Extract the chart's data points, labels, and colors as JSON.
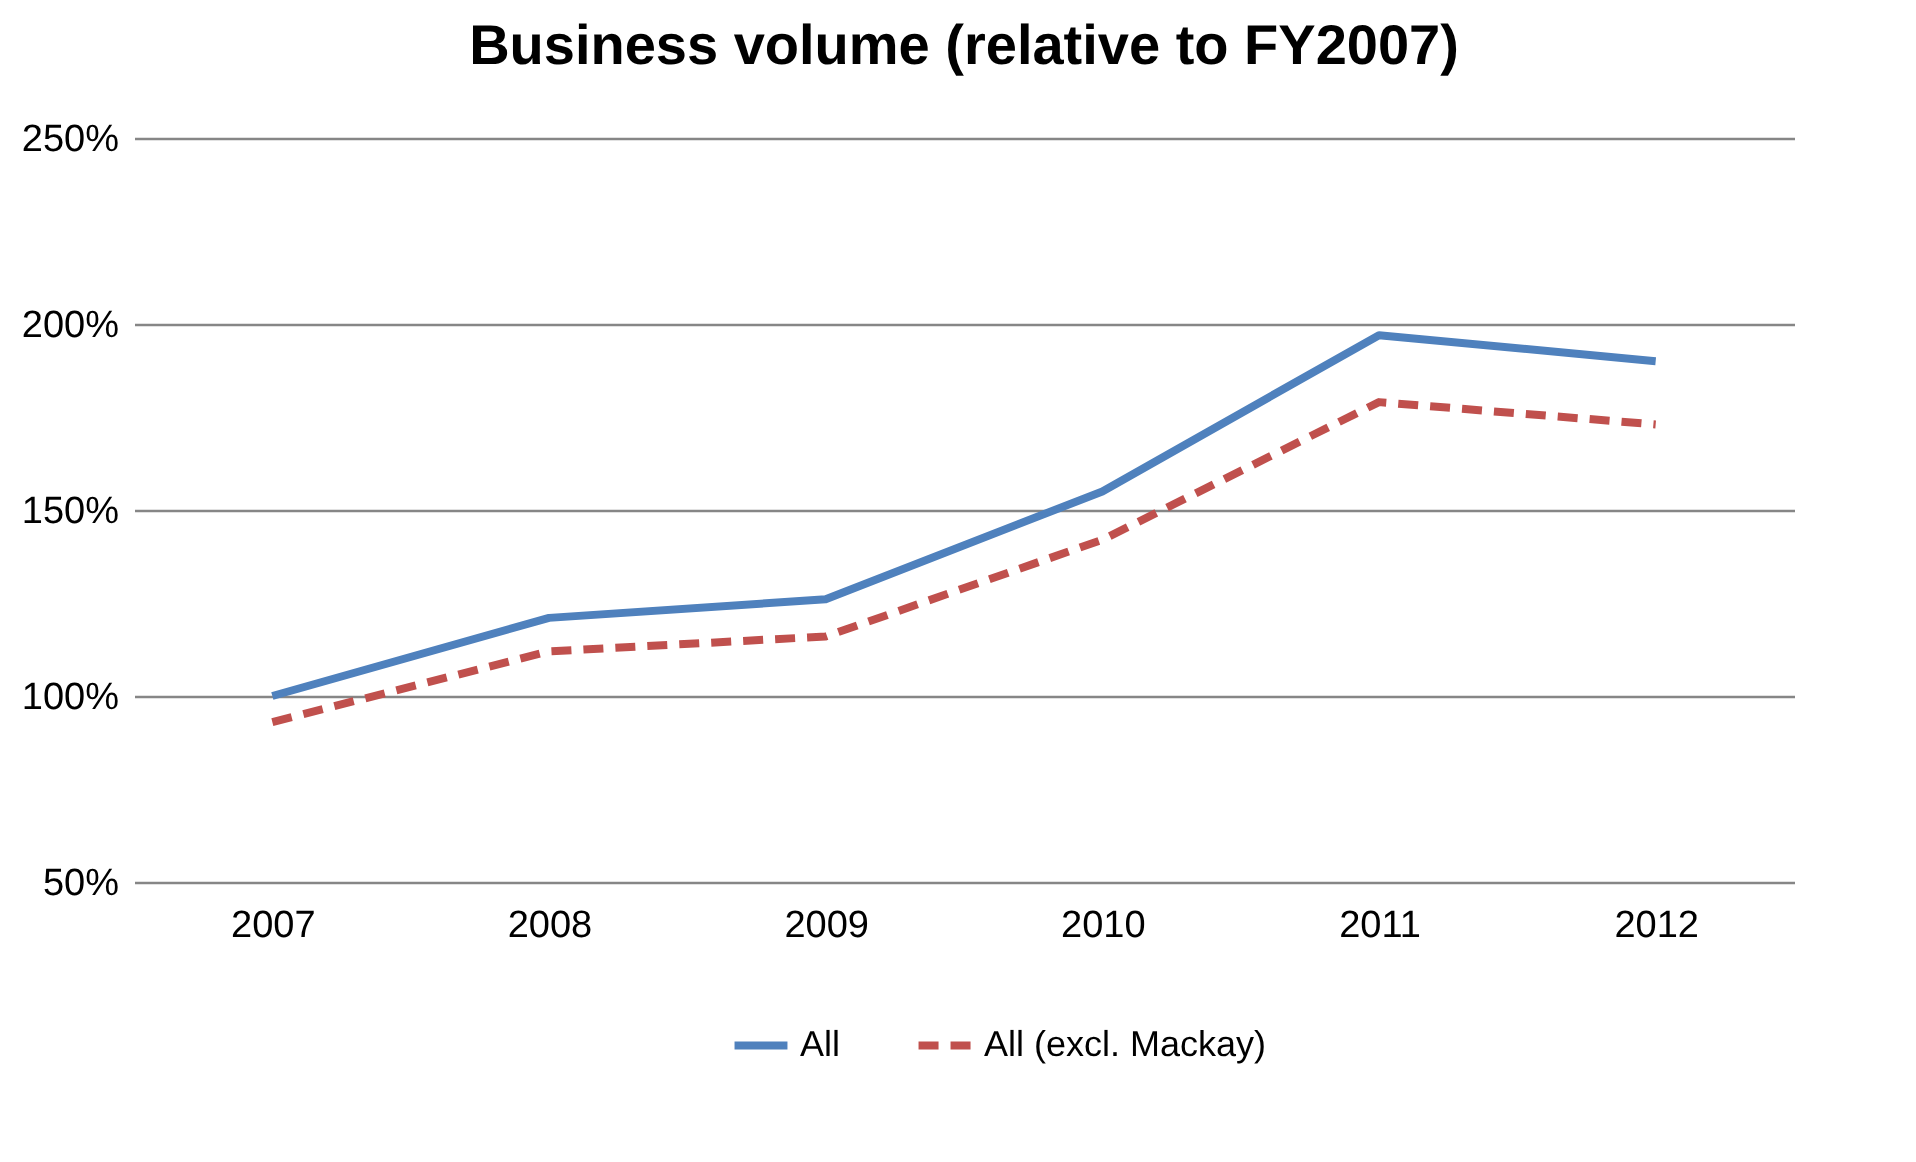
{
  "chart_data": {
    "type": "line",
    "title": "Business volume (relative to FY2007)",
    "categories": [
      "2007",
      "2008",
      "2009",
      "2010",
      "2011",
      "2012"
    ],
    "series": [
      {
        "name": "All",
        "color": "#4f81bd",
        "line_style": "solid",
        "values": [
          100,
          121,
          126,
          155,
          197,
          190
        ]
      },
      {
        "name": "All (excl. Mackay)",
        "color": "#c0504d",
        "line_style": "dashed",
        "values": [
          93,
          112,
          116,
          142,
          179,
          173
        ]
      }
    ],
    "ylim": [
      50,
      250
    ],
    "yticks": [
      {
        "value": 50,
        "label": "50%"
      },
      {
        "value": 100,
        "label": "100%"
      },
      {
        "value": 150,
        "label": "150%"
      },
      {
        "value": 200,
        "label": "200%"
      },
      {
        "value": 250,
        "label": "250%"
      }
    ],
    "grid": "y",
    "legend": "bottom",
    "marker": "none"
  }
}
